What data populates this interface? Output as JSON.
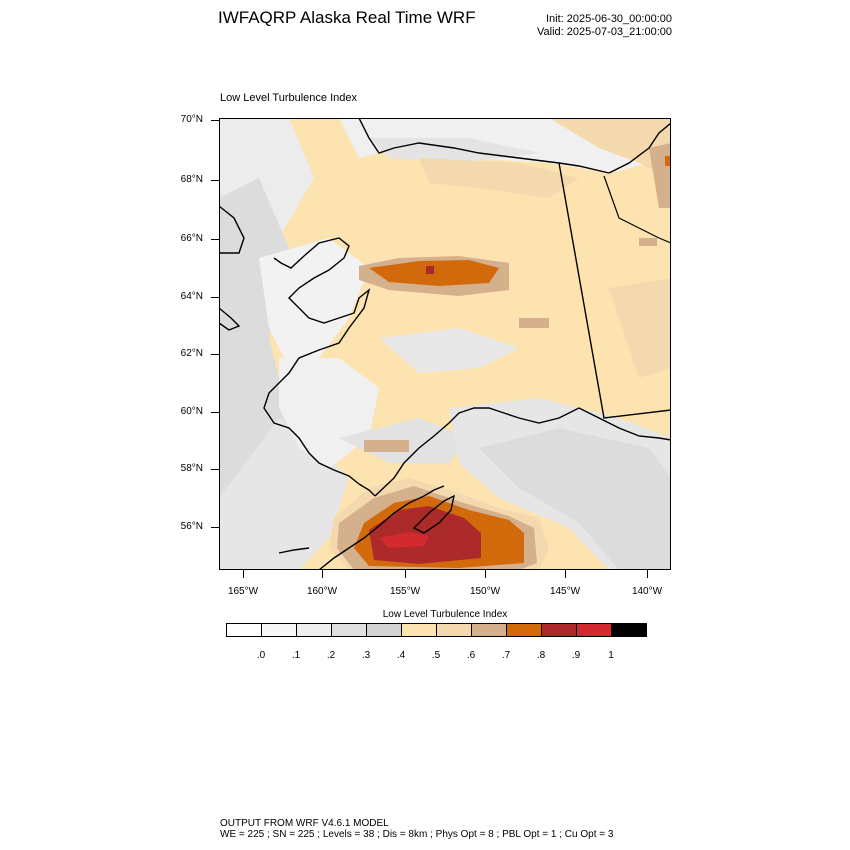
{
  "header": {
    "title": "IWFAQRP Alaska Real Time WRF",
    "init": "Init: 2025-06-30_00:00:00",
    "valid": "Valid: 2025-07-03_21:00:00"
  },
  "plot": {
    "title": "Low Level Turbulence Index",
    "lat_labels": [
      "70°N",
      "68°N",
      "66°N",
      "64°N",
      "62°N",
      "60°N",
      "58°N",
      "56°N"
    ],
    "lon_labels": [
      "165°W",
      "160°W",
      "155°W",
      "150°W",
      "145°W",
      "140°W"
    ]
  },
  "colorbar": {
    "title": "Low Level Turbulence Index",
    "labels": [
      ".0",
      ".1",
      ".2",
      ".3",
      ".4",
      ".5",
      ".6",
      ".7",
      ".8",
      ".9",
      "1"
    ],
    "colors": [
      "#ffffff",
      "#f7f7f7",
      "#efefef",
      "#e0e0e0",
      "#d2d2d2",
      "#fde3b0",
      "#f5d9ae",
      "#d4b18c",
      "#d2690b",
      "#ad2a2b",
      "#d22a2f",
      "#000000"
    ]
  },
  "footer": {
    "line1": "OUTPUT FROM WRF V4.6.1 MODEL",
    "line2": "WE = 225 ; SN = 225 ; Levels = 38 ; Dis = 8km ; Phys Opt = 8 ; PBL Opt = 1 ; Cu Opt = 3"
  }
}
